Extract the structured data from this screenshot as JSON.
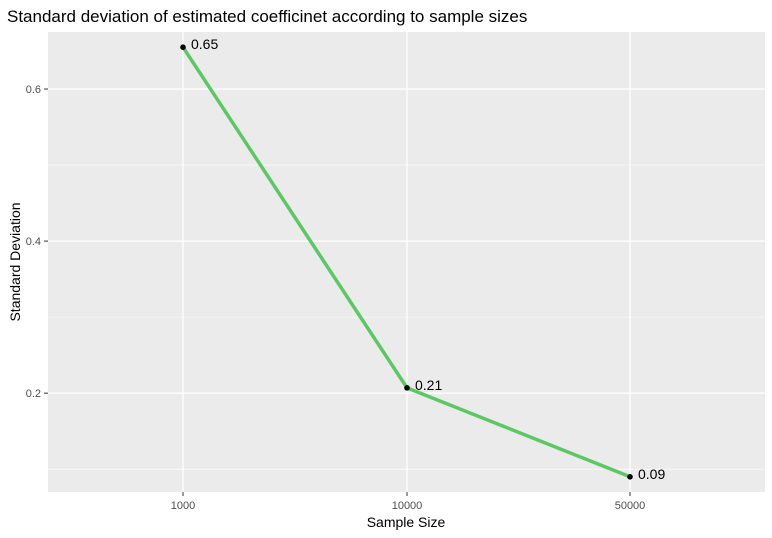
{
  "chart_data": {
    "type": "line",
    "title": "Standard deviation of estimated coefficinet according to sample sizes",
    "xlabel": "Sample Size",
    "ylabel": "Standard Deviation",
    "x_scale": "categorical",
    "categories": [
      "1000",
      "10000",
      "50000"
    ],
    "values": [
      0.655,
      0.207,
      0.09
    ],
    "data_labels": [
      "0.65",
      "0.21",
      "0.09"
    ],
    "ylim": [
      0.07,
      0.675
    ],
    "yticks": [
      0.2,
      0.4,
      0.6
    ],
    "ytick_labels": [
      "0.2",
      "0.4",
      "0.6"
    ],
    "grid": true,
    "legend": "none",
    "colors": {
      "line": "#5cc863",
      "point": "#000000",
      "panel_background": "#ebebeb",
      "grid": "#ffffff"
    }
  }
}
